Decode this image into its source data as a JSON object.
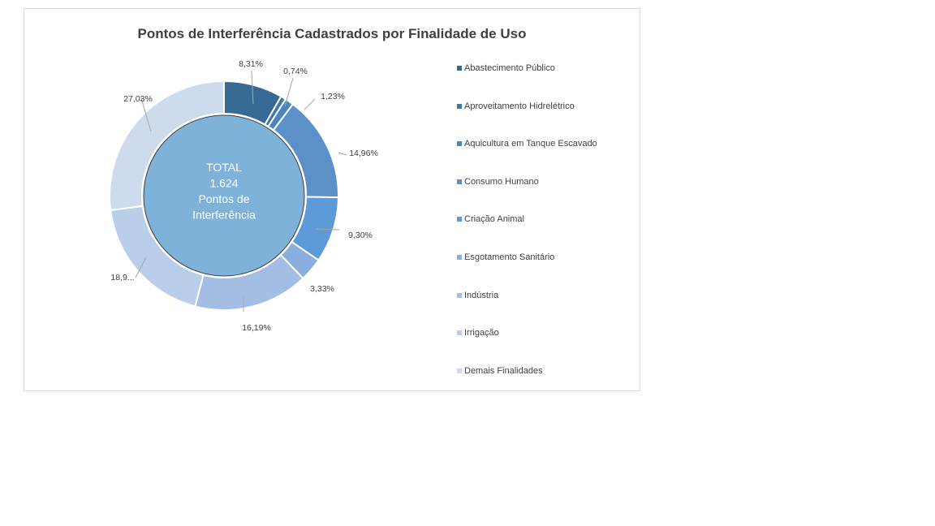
{
  "chart_data": {
    "type": "pie",
    "title": "Pontos de Interferência Cadastrados por Finalidade de Uso",
    "center_text": [
      "TOTAL",
      "1.624",
      "Pontos de",
      "Interferência"
    ],
    "categories": [
      "Abastecimento Público",
      "Aproveitamento Hidrelétrico",
      "Aquicultura em Tanque Escavado",
      "Consumo Humano",
      "Criação Animal",
      "Esgotamento Sanitário",
      "Indústria",
      "Irrigação",
      "Demais Finalidades"
    ],
    "values": [
      8.31,
      0.74,
      1.23,
      14.96,
      9.3,
      3.33,
      16.19,
      18.91,
      27.03
    ],
    "data_labels": [
      "8,31%",
      "0,74%",
      "1,23%",
      "14,96%",
      "9,30%",
      "3,33%",
      "16,19%",
      "18,9...",
      "27,03%"
    ],
    "colors": [
      "#376a95",
      "#3f77a8",
      "#4a86bd",
      "#5b91c6",
      "#5d9bd8",
      "#8aafde",
      "#a3bde3",
      "#b9cee9",
      "#cddbec"
    ],
    "center_color": "#7fb2d8",
    "legend_position": "right"
  }
}
